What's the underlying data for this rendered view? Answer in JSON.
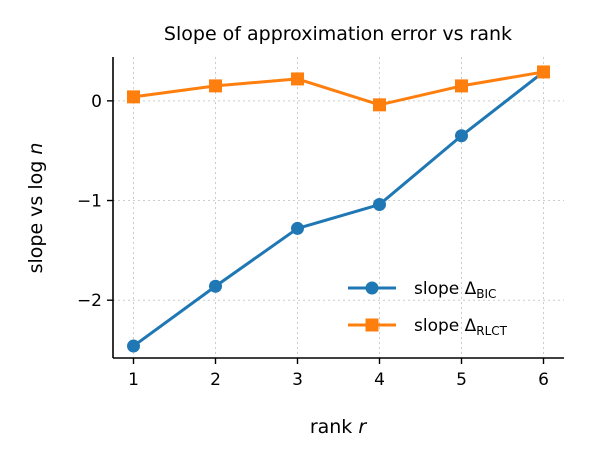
{
  "chart_data": {
    "type": "line",
    "title": "Slope of approximation error vs rank",
    "xlabel_main": "rank ",
    "xlabel_var": "r",
    "ylabel_main": "slope vs log ",
    "ylabel_var": "n",
    "x": [
      1,
      2,
      3,
      4,
      5,
      6
    ],
    "xticks": [
      "1",
      "2",
      "3",
      "4",
      "5",
      "6"
    ],
    "yticks": [
      {
        "value": 0,
        "label": "0"
      },
      {
        "value": -1,
        "label": "−1"
      },
      {
        "value": -2,
        "label": "−2"
      }
    ],
    "xlim": [
      0.75,
      6.25
    ],
    "ylim": [
      -2.58,
      0.44
    ],
    "grid": true,
    "legend_position": "lower-right",
    "series": [
      {
        "name_main": "slope Δ",
        "name_sub": "BIC",
        "color": "#1f77b4",
        "marker": "circle",
        "values": [
          -2.46,
          -1.86,
          -1.28,
          -1.04,
          -0.35,
          0.29
        ]
      },
      {
        "name_main": "slope Δ",
        "name_sub": "RLCT",
        "color": "#ff7f0e",
        "marker": "square",
        "values": [
          0.04,
          0.15,
          0.22,
          -0.04,
          0.15,
          0.29
        ]
      }
    ]
  }
}
